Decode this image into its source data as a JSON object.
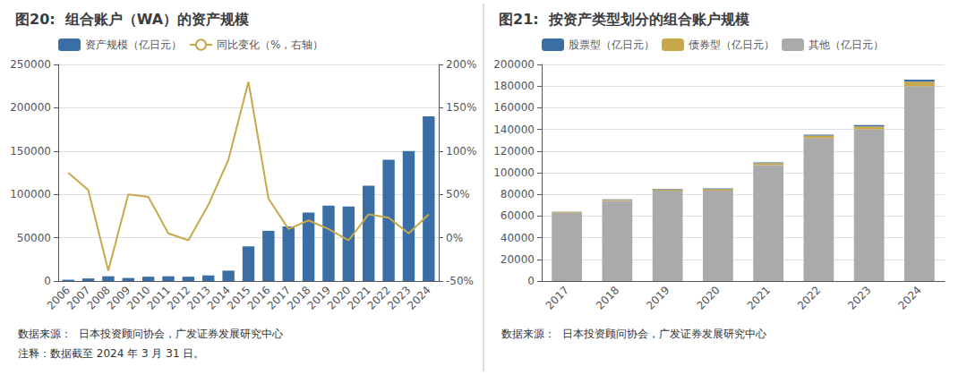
{
  "chart_data": [
    {
      "type": "bar",
      "title": "图20:  组合账户（WA）的资产规模",
      "categories": [
        "2006",
        "2007",
        "2008",
        "2009",
        "2010",
        "2011",
        "2012",
        "2013",
        "2014",
        "2015",
        "2016",
        "2017",
        "2018",
        "2019",
        "2020",
        "2021",
        "2022",
        "2023",
        "2024"
      ],
      "series": [
        {
          "name": "资产规模（亿日元）",
          "type": "bar",
          "color": "#3A6EA5",
          "values": [
            1500,
            3000,
            5500,
            3500,
            5000,
            5500,
            5000,
            6500,
            12000,
            40000,
            58000,
            63000,
            79000,
            87000,
            86000,
            110000,
            140000,
            150000,
            190000
          ]
        },
        {
          "name": "同比变化（%，右轴）",
          "type": "line",
          "color": "#C8A84B",
          "axis": "y2",
          "values": [
            75,
            55,
            -38,
            50,
            47,
            5,
            -3,
            38,
            90,
            180,
            45,
            10,
            20,
            10,
            -3,
            27,
            23,
            5,
            27
          ]
        }
      ],
      "ylim": [
        0,
        250000
      ],
      "yticks": [
        0,
        50000,
        100000,
        150000,
        200000,
        250000
      ],
      "y2lim": [
        -50,
        200
      ],
      "y2ticks": [
        {
          "value": -50,
          "label": "-50%"
        },
        {
          "value": 0,
          "label": "0%"
        },
        {
          "value": 50,
          "label": "50%"
        },
        {
          "value": 100,
          "label": "100%"
        },
        {
          "value": 150,
          "label": "150%"
        },
        {
          "value": 200,
          "label": "200%"
        }
      ],
      "grid": true,
      "legend": "upper left",
      "annotations": [
        "数据来源：  日本投资顾问协会，广发证券发展研究中心",
        "注释：数据截至 2024 年 3 月 31 日。"
      ]
    },
    {
      "type": "bar",
      "title": "图21:  按资产类型划分的组合账户规模",
      "categories": [
        "2017",
        "2018",
        "2019",
        "2020",
        "2021",
        "2022",
        "2023",
        "2024"
      ],
      "stacked": true,
      "series": [
        {
          "name": "股票型（亿日元）",
          "color": "#3A6EA5",
          "values": [
            300,
            400,
            500,
            600,
            700,
            900,
            1200,
            2000
          ]
        },
        {
          "name": "债券型（亿日元）",
          "color": "#C8A84B",
          "values": [
            800,
            1000,
            1200,
            1500,
            1800,
            2200,
            2800,
            4000
          ]
        },
        {
          "name": "其他（亿日元）",
          "color": "#AAAAAA",
          "values": [
            63000,
            74000,
            83500,
            83500,
            107000,
            132000,
            140000,
            180000
          ]
        }
      ],
      "ylim": [
        0,
        200000
      ],
      "yticks": [
        0,
        20000,
        40000,
        60000,
        80000,
        100000,
        120000,
        140000,
        160000,
        180000,
        200000
      ],
      "grid": true,
      "legend": "upper left",
      "annotations": [
        "数据来源：  日本投资顾问协会，广发证券发展研究中心"
      ]
    }
  ]
}
